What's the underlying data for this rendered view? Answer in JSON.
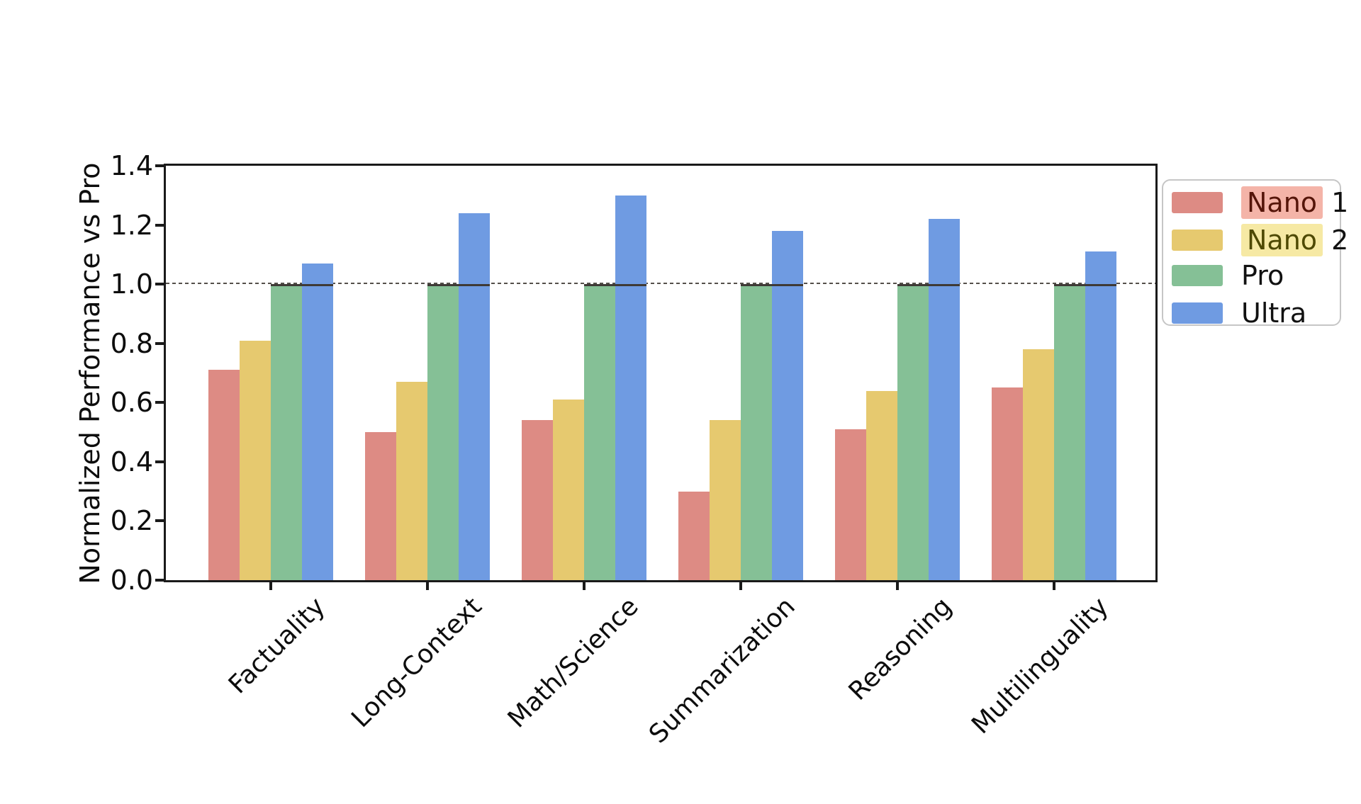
{
  "chart_data": {
    "type": "bar",
    "title": "",
    "xlabel": "",
    "ylabel": "Normalized Performance vs Pro",
    "ylim": [
      0,
      1.4
    ],
    "ytick_step": 0.2,
    "yticks": [
      "0.0",
      "0.2",
      "0.4",
      "0.6",
      "0.8",
      "1.0",
      "1.2",
      "1.4"
    ],
    "grid": false,
    "background": "#ffffff",
    "categories": [
      "Factuality",
      "Long-Context",
      "Math/Science",
      "Summarization",
      "Reasoning",
      "Multilinguality"
    ],
    "series": [
      {
        "name": "Nano 1",
        "color": "#DD8B84",
        "values": [
          0.71,
          0.5,
          0.54,
          0.3,
          0.51,
          0.65
        ]
      },
      {
        "name": "Nano 2",
        "color": "#E6C96F",
        "values": [
          0.81,
          0.67,
          0.61,
          0.54,
          0.64,
          0.78
        ]
      },
      {
        "name": "Pro",
        "color": "#85C096",
        "values": [
          1.0,
          1.0,
          1.0,
          1.0,
          1.0,
          1.0
        ]
      },
      {
        "name": "Ultra",
        "color": "#6F9BE2",
        "values": [
          1.07,
          1.24,
          1.3,
          1.18,
          1.22,
          1.11
        ]
      }
    ],
    "reference_line": {
      "y": 1.0,
      "style": "dashed",
      "color": "#55504b"
    },
    "legend_position": "outside-upper-right"
  },
  "legend": {
    "items": [
      {
        "label": "Nano 1",
        "highlight_word": "Nano",
        "suffix": " 1",
        "swatch_color": "#DD8B84",
        "highlight_bg": "#F4B4A8",
        "highlight_text": "#551509"
      },
      {
        "label": "Nano 2",
        "highlight_word": "Nano",
        "suffix": " 2",
        "swatch_color": "#E6C96F",
        "highlight_bg": "#F6E9A4",
        "highlight_text": "#4E4903"
      },
      {
        "label": "Pro",
        "highlight_word": "",
        "suffix": "Pro",
        "swatch_color": "#85C096",
        "highlight_bg": "",
        "highlight_text": ""
      },
      {
        "label": "Ultra",
        "highlight_word": "",
        "suffix": "Ultra",
        "swatch_color": "#6F9BE2",
        "highlight_bg": "",
        "highlight_text": ""
      }
    ]
  }
}
